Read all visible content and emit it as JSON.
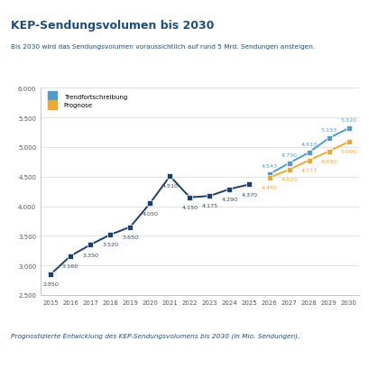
{
  "chart_data": {
    "type": "line",
    "title": "KEP-Sendungsvolumen bis 2030",
    "subtitle": "Bis 2030 wird das Sendungsvolumen voraussichtlich auf rund 5 Mrd. Sendungen ansteigen.",
    "caption": "Prognostizierte Entwicklung des KEP-Sendungsvolumens bis 2030 (in Mio. Sendungen).",
    "categories": [
      "2015",
      "2016",
      "2017",
      "2018",
      "2019",
      "2020",
      "2021",
      "2022",
      "2023",
      "2024",
      "2025",
      "2026",
      "2027",
      "2028",
      "2029",
      "2030"
    ],
    "series": [
      {
        "color": "#1f3f66",
        "marker": "square",
        "values": [
          2850,
          3160,
          3350,
          3520,
          3650,
          4050,
          4510,
          4150,
          4175,
          4290,
          4370,
          null,
          null,
          null,
          null,
          null
        ],
        "value_labels": [
          "2.850",
          "3.160",
          "3.350",
          "3.520",
          "3.650",
          "4.050",
          "4.510",
          "4.150",
          "4.175",
          "4.290",
          "4.370",
          null,
          null,
          null,
          null,
          null
        ]
      },
      {
        "name": "Trendfortschreibung",
        "color": "#4f9cc9",
        "marker": "square",
        "values": [
          null,
          null,
          null,
          null,
          null,
          null,
          null,
          null,
          null,
          null,
          null,
          4543,
          4730,
          4910,
          5153,
          5320
        ],
        "value_labels": [
          null,
          null,
          null,
          null,
          null,
          null,
          null,
          null,
          null,
          null,
          null,
          "4.543",
          "4.730",
          "4.910",
          "5.153",
          "5.320"
        ]
      },
      {
        "name": "Prognose",
        "color": "#f0a830",
        "marker": "square",
        "values": [
          null,
          null,
          null,
          null,
          null,
          null,
          null,
          null,
          null,
          null,
          null,
          4483,
          4620,
          4777,
          4930,
          5090
        ],
        "value_labels": [
          null,
          null,
          null,
          null,
          null,
          null,
          null,
          null,
          null,
          null,
          null,
          "4.483",
          "4.620",
          "4.777",
          "4.930",
          "5.090"
        ]
      }
    ],
    "ylim": [
      2500,
      6000
    ],
    "yticks": [
      {
        "value": 2500,
        "label": "2.500"
      },
      {
        "value": 3000,
        "label": "3.000"
      },
      {
        "value": 3500,
        "label": "3.500"
      },
      {
        "value": 4000,
        "label": "4.000"
      },
      {
        "value": 4500,
        "label": "4.500"
      },
      {
        "value": 5000,
        "label": "5.000"
      },
      {
        "value": 5500,
        "label": "5.500"
      },
      {
        "value": 6000,
        "label": "6.000"
      }
    ],
    "grid": true,
    "legend": "upper left",
    "data_labels": true
  }
}
